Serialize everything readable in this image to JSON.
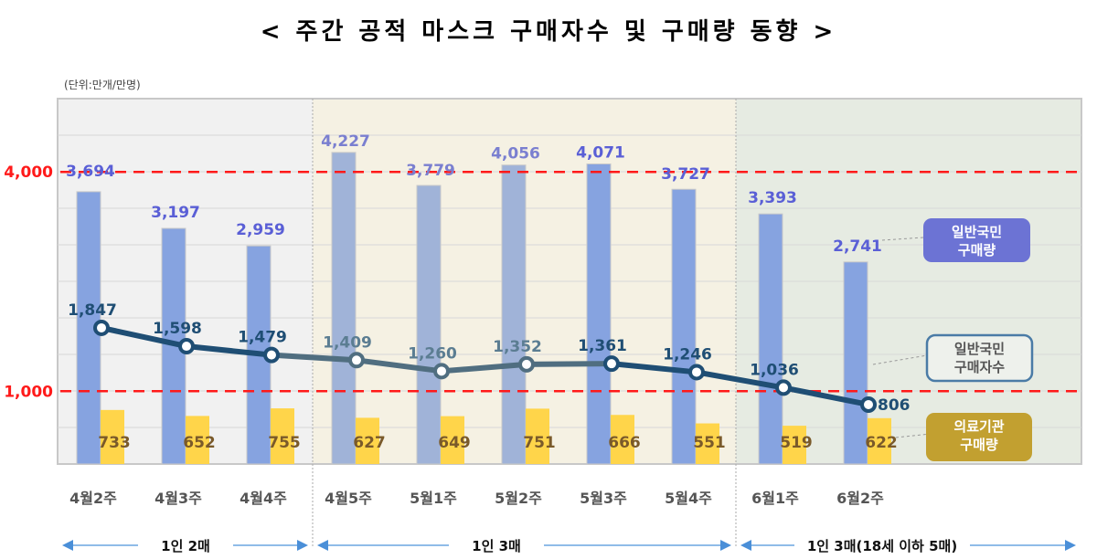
{
  "title": "< 주간 공적 마스크 구매자수 및 구매량 동향 >",
  "unit": "(단위:만개/만명)",
  "colors": {
    "bar_general": "#86a3e0",
    "bar_general_muted": "#a0b3d8",
    "bar_medical": "#ffd54a",
    "line": "#1f4e74",
    "line_muted": "#506e80",
    "ref_line": "#ff1a1a",
    "region1_bg": "#f1f1f1",
    "region2_bg": "#f5f1e3",
    "region3_bg": "#e6ebe2",
    "label_blue": "#5a5fd6",
    "legend_general_bg": "#6c73d4",
    "legend_buyers_border": "#4a7ba6",
    "legend_medical_bg": "#c2a030"
  },
  "chart_data": {
    "type": "bar+line",
    "title": "< 주간 공적 마스크 구매자수 및 구매량 동향 >",
    "unit_label": "(단위:만개/만명)",
    "categories": [
      "4월2주",
      "4월3주",
      "4월4주",
      "4월5주",
      "5월1주",
      "5월2주",
      "5월3주",
      "5월4주",
      "6월1주",
      "6월2주"
    ],
    "series": [
      {
        "name": "일반국민 구매량",
        "type": "bar",
        "values": [
          3694,
          3197,
          2959,
          4227,
          3779,
          4056,
          4071,
          3727,
          3393,
          2741
        ]
      },
      {
        "name": "의료기관 구매량",
        "type": "bar",
        "values": [
          733,
          652,
          755,
          627,
          649,
          751,
          666,
          551,
          519,
          622
        ]
      },
      {
        "name": "일반국민 구매자수",
        "type": "line",
        "values": [
          1847,
          1598,
          1479,
          1409,
          1260,
          1352,
          1361,
          1246,
          1036,
          806
        ]
      }
    ],
    "reference_lines": [
      {
        "value": 4000,
        "label": "4,000"
      },
      {
        "value": 1000,
        "label": "1,000"
      }
    ],
    "ylim": [
      0,
      4900
    ],
    "grid": true,
    "periods": [
      {
        "label": "1인 2매",
        "start": 0,
        "end": 2
      },
      {
        "label": "1인 3매",
        "start": 3,
        "end": 7
      },
      {
        "label": "1인 3매(18세 이하 5매)",
        "start": 8,
        "end": 9
      }
    ],
    "legend": [
      {
        "label_line1": "일반국민",
        "label_line2": "구매량"
      },
      {
        "label_line1": "일반국민",
        "label_line2": "구매자수"
      },
      {
        "label_line1": "의료기관",
        "label_line2": "구매량"
      }
    ]
  }
}
